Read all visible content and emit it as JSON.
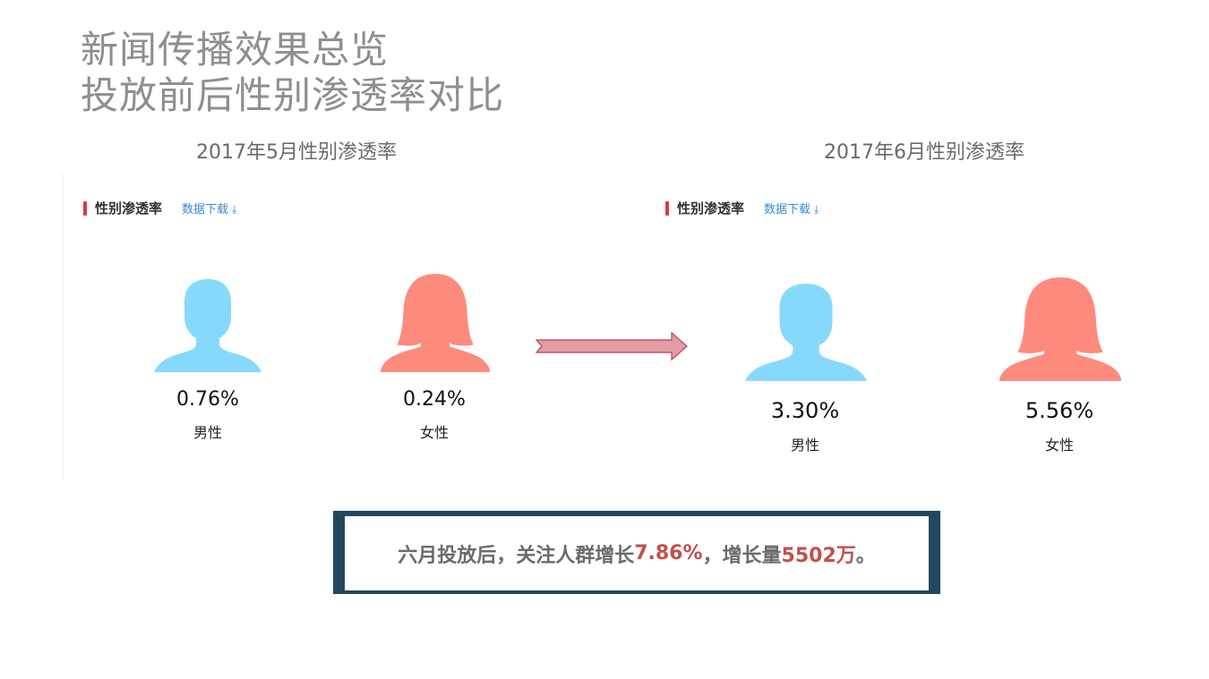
{
  "title": {
    "line1": "新闻传播效果总览",
    "line2": "投放前后性别渗透率对比"
  },
  "left": {
    "subtitle": "2017年5月性别渗透率",
    "panel_label": "性别渗透率",
    "download_label": "数据下载",
    "male": {
      "percent": "0.76%",
      "label": "男性"
    },
    "female": {
      "percent": "0.24%",
      "label": "女性"
    }
  },
  "right": {
    "subtitle": "2017年6月性别渗透率",
    "panel_label": "性别渗透率",
    "download_label": "数据下载",
    "male": {
      "percent": "3.30%",
      "label": "男性"
    },
    "female": {
      "percent": "5.56%",
      "label": "女性"
    }
  },
  "summary": {
    "part1": "六月投放后，关注人群增长",
    "growth": "7.86%",
    "part2": "，增长量",
    "amount": "5502万",
    "part3": "。"
  },
  "colors": {
    "male": "#87d9fb",
    "female": "#fc8b7d",
    "accent_red": "#e2373f",
    "link_blue": "#3a8ad6",
    "highlight": "#c0504d",
    "box_border": "#23475f",
    "arrow_fill": "#e59ca4",
    "arrow_stroke": "#b0455b"
  },
  "icons": {
    "download": "download-icon",
    "male": "male-avatar-icon",
    "female": "female-avatar-icon",
    "arrow": "right-arrow-icon"
  }
}
